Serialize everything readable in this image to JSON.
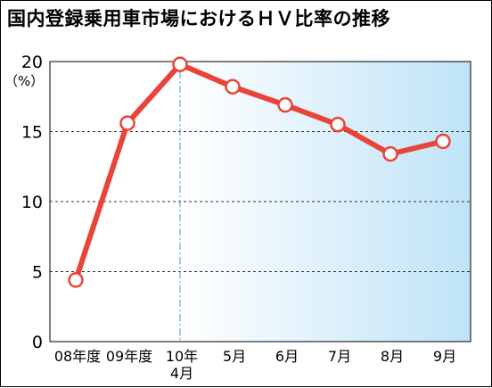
{
  "title": "国内登録乗用車市場におけるＨＶ比率の推移",
  "chart_data": {
    "type": "line",
    "title": "国内登録乗用車市場におけるＨＶ比率の推移",
    "ylabel": "（%）",
    "ylim": [
      0,
      20
    ],
    "yticks": [
      "0",
      "5",
      "10",
      "15",
      "20"
    ],
    "grid": true,
    "categories": [
      [
        "08年度"
      ],
      [
        "09年度"
      ],
      [
        "10年",
        "4月"
      ],
      [
        "5月"
      ],
      [
        "6月"
      ],
      [
        "7月"
      ],
      [
        "8月"
      ],
      [
        "9月"
      ]
    ],
    "values": [
      4.4,
      15.6,
      19.8,
      18.2,
      16.9,
      15.5,
      13.4,
      14.3
    ],
    "colors": {
      "line": "#e8443a",
      "marker_fill": "#ffffff",
      "shade_start": "#ffffff",
      "shade_end": "#bfe3f7"
    }
  }
}
